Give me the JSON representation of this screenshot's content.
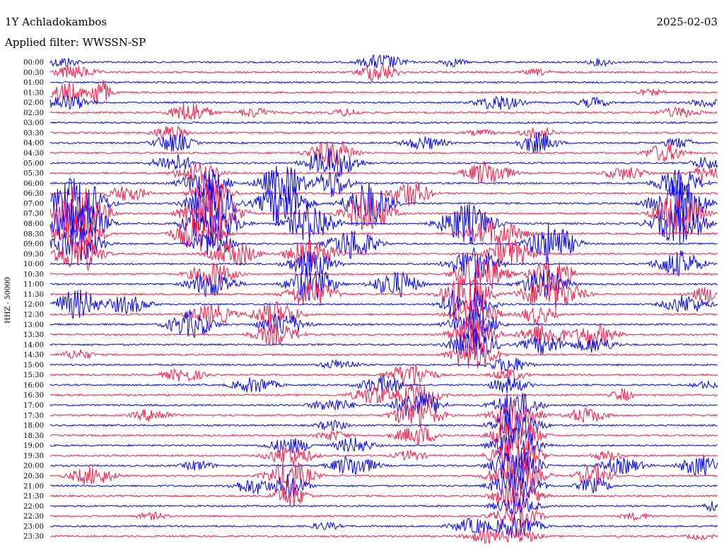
{
  "header": {
    "station": "1Y Achladokambos",
    "date": "2025-02-03",
    "filter": "Applied filter: WWSSN-SP"
  },
  "channel_label": "HHZ - 50000",
  "colors": {
    "odd": "#0000ff",
    "even": "#ff1744"
  },
  "chart_data": {
    "type": "line",
    "title": "1Y Achladokambos",
    "ylabel": "HHZ - 50000",
    "tick_labels": [
      "00:00",
      "00:30",
      "01:00",
      "01:30",
      "02:00",
      "02:30",
      "03:00",
      "03:30",
      "04:00",
      "04:30",
      "05:00",
      "05:30",
      "06:00",
      "06:30",
      "07:00",
      "07:30",
      "08:00",
      "08:30",
      "09:00",
      "09:30",
      "10:00",
      "10:30",
      "11:00",
      "11:30",
      "12:00",
      "12:30",
      "13:00",
      "13:30",
      "14:00",
      "14:30",
      "15:00",
      "15:30",
      "16:00",
      "16:30",
      "17:00",
      "17:30",
      "18:00",
      "18:30",
      "19:00",
      "19:30",
      "20:00",
      "20:30",
      "21:00",
      "21:30",
      "22:00",
      "22:30",
      "23:00",
      "23:30"
    ]
  }
}
